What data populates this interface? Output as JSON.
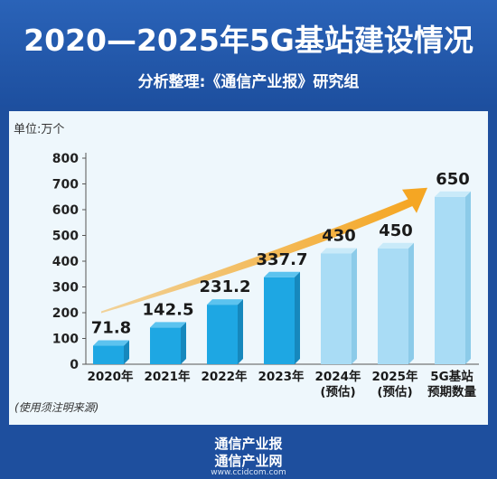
{
  "header": {
    "title": "2020—2025年5G基站建设情况",
    "subtitle": "分析整理:《通信产业报》研究组"
  },
  "note": "(使用须注明来源)",
  "footer": {
    "brand": "通信产业报",
    "network": "通信产业网",
    "url": "www.ccidcom.com"
  },
  "colors": {
    "actual_bar": "#1ea7e3",
    "forecast_bar": "#a9dcf5",
    "arrow": "#f5a623",
    "header_bg": "#1e4f9e",
    "panel_bg": "#eef7fc"
  },
  "chart_data": {
    "type": "bar",
    "unit_label": "单位:万个",
    "categories": [
      [
        "2020年"
      ],
      [
        "2021年"
      ],
      [
        "2022年"
      ],
      [
        "2023年"
      ],
      [
        "2024年",
        "(预估)"
      ],
      [
        "2025年",
        "(预估)"
      ],
      [
        "5G基站",
        "预期数量"
      ]
    ],
    "values": [
      71.8,
      142.5,
      231.2,
      337.7,
      430,
      450,
      650
    ],
    "value_labels": [
      "71.8",
      "142.5",
      "231.2",
      "337.7",
      "430",
      "450",
      "650"
    ],
    "forecast": [
      false,
      false,
      false,
      false,
      true,
      true,
      true
    ],
    "ylim": [
      0,
      800
    ],
    "yticks": [
      0,
      100,
      200,
      300,
      400,
      500,
      600,
      700,
      800
    ],
    "grid": false,
    "trend_arrow": true
  }
}
